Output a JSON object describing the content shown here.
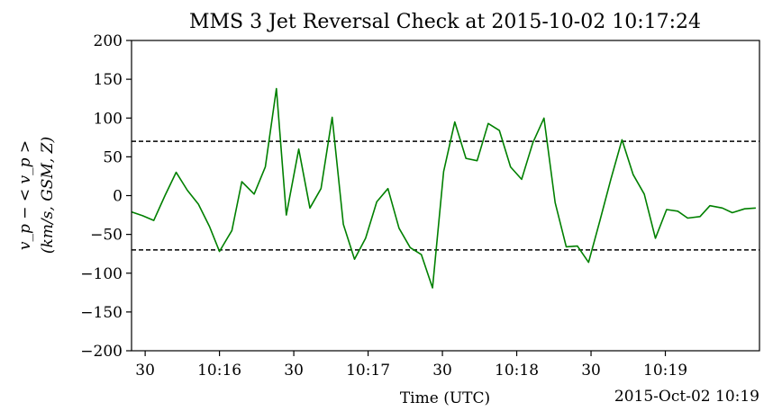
{
  "chart_data": {
    "type": "line",
    "title": "MMS 3 Jet Reversal Check at 2015-10-02 10:17:24",
    "xlabel": "Time (UTC)",
    "ylabel_line1": "v_p − < v_p >",
    "ylabel_line2": "(km/s, GSM, Z)",
    "offset_label": "2015-Oct-02 10:19",
    "xlim": [
      "10:15:24.5",
      "10:19:38"
    ],
    "ylim": [
      -200,
      200
    ],
    "x_ticks": [
      {
        "t": "10:15:30",
        "label": "30"
      },
      {
        "t": "10:16:00",
        "label": "10:16"
      },
      {
        "t": "10:16:30",
        "label": "30"
      },
      {
        "t": "10:17:00",
        "label": "10:17"
      },
      {
        "t": "10:17:30",
        "label": "30"
      },
      {
        "t": "10:18:00",
        "label": "10:18"
      },
      {
        "t": "10:18:30",
        "label": "30"
      },
      {
        "t": "10:19:00",
        "label": "10:19"
      }
    ],
    "y_ticks": [
      {
        "v": 200,
        "label": "200"
      },
      {
        "v": 150,
        "label": "150"
      },
      {
        "v": 100,
        "label": "100"
      },
      {
        "v": 50,
        "label": "50"
      },
      {
        "v": 0,
        "label": "0"
      },
      {
        "v": -50,
        "label": "−50"
      },
      {
        "v": -100,
        "label": "−100"
      },
      {
        "v": -150,
        "label": "−150"
      },
      {
        "v": -200,
        "label": "−200"
      }
    ],
    "thresholds": [
      70,
      -70
    ],
    "series": [
      {
        "color": "#008000",
        "x": [
          "10:15:24.5",
          "10:15:29",
          "10:15:33.5",
          "10:15:38",
          "10:15:42.5",
          "10:15:47",
          "10:15:51.5",
          "10:15:56",
          "10:16:00",
          "10:16:05",
          "10:16:09",
          "10:16:14",
          "10:16:18.5",
          "10:16:23",
          "10:16:27",
          "10:16:32",
          "10:16:36.5",
          "10:16:41",
          "10:16:45.5",
          "10:16:50",
          "10:16:54.5",
          "10:16:59",
          "10:17:03.5",
          "10:17:08",
          "10:17:12.5",
          "10:17:17",
          "10:17:21.5",
          "10:17:26",
          "10:17:30.5",
          "10:17:35",
          "10:17:39.5",
          "10:17:44",
          "10:17:48.5",
          "10:17:53",
          "10:17:57.5",
          "10:18:02",
          "10:18:06.5",
          "10:18:11",
          "10:18:15.5",
          "10:18:20",
          "10:18:24.5",
          "10:18:29",
          "10:18:33.5",
          "10:18:38",
          "10:18:42.5",
          "10:18:47",
          "10:18:51.5",
          "10:18:56",
          "10:19:00.5",
          "10:19:05",
          "10:19:09",
          "10:19:14",
          "10:19:18",
          "10:19:23",
          "10:19:27",
          "10:19:32",
          "10:19:36.5"
        ],
        "y": [
          -21,
          -26,
          -32,
          0,
          30,
          7,
          -11,
          -40,
          -72,
          -45,
          18,
          2,
          37,
          138,
          -25,
          60,
          -16,
          9,
          101,
          -37,
          -82,
          -55,
          -8,
          9,
          -42,
          -67,
          -76,
          -119,
          31,
          95,
          48,
          45,
          93,
          84,
          37,
          21,
          68,
          100,
          -9,
          -66,
          -65,
          -86,
          -33,
          21,
          72,
          27,
          2,
          -55,
          -18,
          -20,
          -29,
          -27,
          -13,
          -16,
          -22,
          -17,
          -16
        ]
      }
    ]
  }
}
